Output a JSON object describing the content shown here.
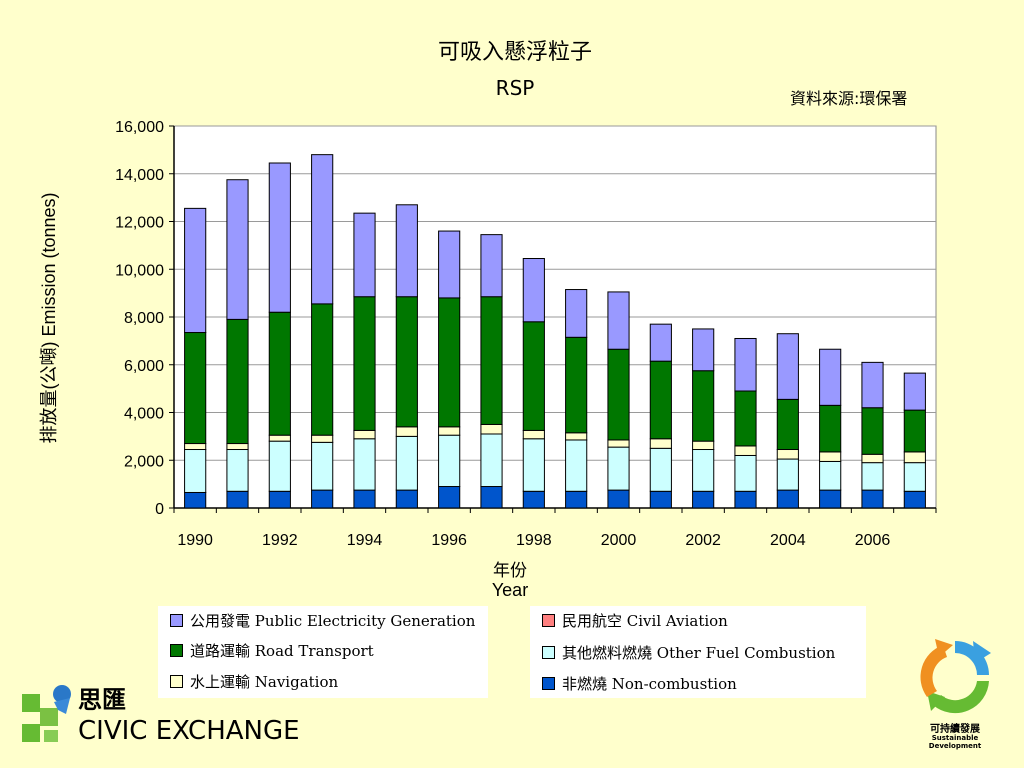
{
  "chart_data": {
    "type": "bar",
    "stacked": true,
    "title": "可吸入懸浮粒子",
    "subtitle": "RSP",
    "source_note": "資料來源:環保署",
    "xlabel_cn": "年份",
    "xlabel_en": "Year",
    "ylabel": "排放量(公噸) Emission (tonnes)",
    "ylim": [
      0,
      16000
    ],
    "yticks": [
      0,
      2000,
      4000,
      6000,
      8000,
      10000,
      12000,
      14000,
      16000
    ],
    "ytick_labels": [
      "0",
      "2,000",
      "4,000",
      "6,000",
      "8,000",
      "10,000",
      "12,000",
      "14,000",
      "16,000"
    ],
    "categories": [
      "1990",
      "1991",
      "1992",
      "1993",
      "1994",
      "1995",
      "1996",
      "1997",
      "1998",
      "1999",
      "2000",
      "2001",
      "2002",
      "2003",
      "2004",
      "2005",
      "2006",
      "2007"
    ],
    "xtick_labels": [
      "1990",
      "",
      "1992",
      "",
      "1994",
      "",
      "1996",
      "",
      "1998",
      "",
      "2000",
      "",
      "2002",
      "",
      "2004",
      "",
      "2006",
      ""
    ],
    "grid": "horizontal",
    "legend_position": "bottom",
    "series": [
      {
        "name": "非燃燒 Non-combustion",
        "color": "#0055cc",
        "values": [
          650,
          700,
          700,
          750,
          750,
          750,
          900,
          900,
          700,
          700,
          750,
          700,
          700,
          700,
          750,
          750,
          750,
          700
        ]
      },
      {
        "name": "其他燃料燃燒 Other Fuel Combustion",
        "color": "#ccffff",
        "values": [
          1800,
          1750,
          2100,
          2000,
          2150,
          2250,
          2150,
          2200,
          2200,
          2150,
          1800,
          1800,
          1750,
          1500,
          1300,
          1200,
          1150,
          1200
        ]
      },
      {
        "name": "水上運輸 Navigation",
        "color": "#ffffcc",
        "values": [
          250,
          250,
          250,
          300,
          350,
          400,
          350,
          400,
          350,
          300,
          300,
          400,
          350,
          400,
          400,
          400,
          350,
          450
        ]
      },
      {
        "name": "民用航空 Civil Aviation",
        "color": "#ff8080",
        "values": [
          0,
          0,
          0,
          0,
          0,
          0,
          0,
          0,
          0,
          0,
          0,
          0,
          0,
          0,
          0,
          0,
          0,
          0
        ]
      },
      {
        "name": "道路運輸 Road Transport",
        "color": "#007700",
        "values": [
          4650,
          5200,
          5150,
          5500,
          5600,
          5450,
          5400,
          5350,
          4550,
          4000,
          3800,
          3250,
          2950,
          2300,
          2100,
          1950,
          1950,
          1750
        ]
      },
      {
        "name": "公用發電 Public Electricity Generation",
        "color": "#9999ff",
        "values": [
          5200,
          5850,
          6250,
          6250,
          3500,
          3850,
          2800,
          2600,
          2650,
          2000,
          2400,
          1550,
          1750,
          2200,
          2750,
          2350,
          1900,
          1550
        ]
      }
    ]
  },
  "legend": {
    "left": [
      {
        "label": "公用發電 Public Electricity Generation",
        "color": "#9999ff"
      },
      {
        "label": "道路運輸 Road Transport",
        "color": "#007700"
      },
      {
        "label": "水上運輸 Navigation",
        "color": "#ffffcc"
      }
    ],
    "right": [
      {
        "label": "民用航空 Civil Aviation",
        "color": "#ff8080"
      },
      {
        "label": "其他燃料燃燒 Other Fuel Combustion",
        "color": "#ccffff"
      },
      {
        "label": "非燃燒 Non-combustion",
        "color": "#0055cc"
      }
    ]
  },
  "logos": {
    "civic_cn": "思匯",
    "civic_en": "CIVIC EXCHANGE",
    "sd_cn": "可持續發展",
    "sd_en": "Sustainable Development"
  }
}
